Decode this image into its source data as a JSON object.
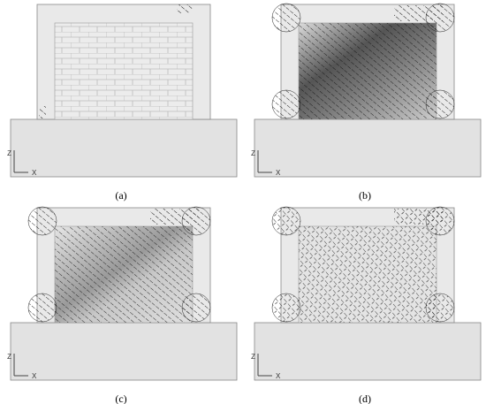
{
  "panels": [
    {
      "label": "(a)",
      "axis_z": "Z",
      "axis_x": "X"
    },
    {
      "label": "(b)",
      "axis_z": "Z",
      "axis_x": "X"
    },
    {
      "label": "(c)",
      "axis_z": "Z",
      "axis_x": "X"
    },
    {
      "label": "(d)",
      "axis_z": "Z",
      "axis_x": "X"
    }
  ]
}
